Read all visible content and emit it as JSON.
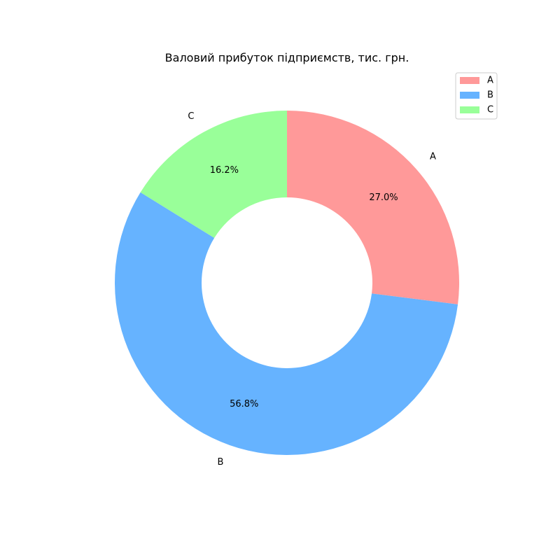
{
  "chart_data": {
    "type": "pie",
    "title": "Валовий прибуток підприємств, тис. грн.",
    "donut": true,
    "start_angle_deg": 90,
    "direction": "clockwise",
    "slices": [
      {
        "label": "A",
        "value": 27.0,
        "pct_label": "27.0%",
        "color": "#ff9999"
      },
      {
        "label": "B",
        "value": 56.8,
        "pct_label": "56.8%",
        "color": "#66b3ff"
      },
      {
        "label": "C",
        "value": 16.2,
        "pct_label": "16.2%",
        "color": "#99ff99"
      }
    ],
    "legend": {
      "position": "top-right",
      "entries": [
        "A",
        "B",
        "C"
      ]
    }
  }
}
